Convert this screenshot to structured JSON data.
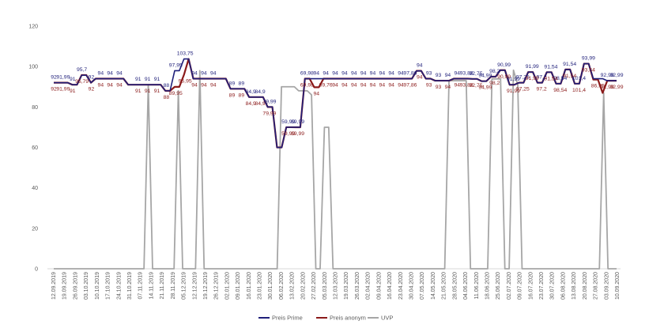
{
  "chart_data": {
    "type": "line",
    "title": "",
    "xlabel": "",
    "ylabel": "",
    "ylim": [
      0,
      120
    ],
    "yticks": [
      0,
      20,
      40,
      60,
      80,
      100,
      120
    ],
    "grid": false,
    "legend_position": "bottom",
    "x_tick_labels": [
      "12.09.2019",
      "19.09.2019",
      "26.09.2019",
      "03.10.2019",
      "10.10.2019",
      "17.10.2019",
      "24.10.2019",
      "31.10.2019",
      "07.11.2019",
      "14.11.2019",
      "21.11.2019",
      "28.11.2019",
      "05.12.2019",
      "12.12.2019",
      "19.12.2019",
      "26.12.2019",
      "02.01.2020",
      "09.01.2020",
      "16.01.2020",
      "23.01.2020",
      "30.01.2020",
      "06.02.2020",
      "13.02.2020",
      "20.02.2020",
      "27.02.2020",
      "05.03.2020",
      "12.03.2020",
      "19.03.2020",
      "26.03.2020",
      "02.04.2020",
      "09.04.2020",
      "16.04.2020",
      "23.04.2020",
      "30.04.2020",
      "07.05.2020",
      "14.05.2020",
      "21.05.2020",
      "28.05.2020",
      "04.06.2020",
      "11.06.2020",
      "18.06.2020",
      "25.06.2020",
      "02.07.2020",
      "09.07.2020",
      "16.07.2020",
      "23.07.2020",
      "30.07.2020",
      "06.08.2020",
      "13.08.2020",
      "20.08.2020",
      "27.08.2020",
      "03.09.2020",
      "10.09.2020"
    ],
    "series": [
      {
        "name": "Preis Prime",
        "color": "#1f1f7a",
        "labels": [
          "92",
          "91,99",
          "91",
          "95,7",
          "92",
          "94",
          "94",
          "94",
          "",
          "91",
          "91",
          "91",
          "88",
          "97,95",
          "103,75",
          "94",
          "94",
          "94",
          "",
          "89",
          "89",
          "84,9",
          "84,9",
          "79,99",
          "",
          "59,99",
          "69,99",
          "69,98",
          "94",
          "94",
          "94",
          "94",
          "94",
          "94",
          "94",
          "94",
          "94",
          "94",
          "97,86",
          "94",
          "93",
          "93",
          "94",
          "94",
          "93,88",
          "92,75",
          "94,99",
          "98,2",
          "90,99",
          "91,99",
          "97,25",
          "91,99",
          "97,2",
          "91,54",
          "98,54",
          "91,54",
          "101,4",
          "93,99",
          "",
          "92,99",
          "92,99"
        ],
        "values": [
          92,
          92,
          91.99,
          91.99,
          91,
          91,
          95.7,
          95.7,
          92,
          94,
          94,
          94,
          94,
          94,
          94,
          94,
          91,
          91,
          91,
          91,
          91,
          91,
          91,
          91,
          88,
          88,
          97.95,
          97.95,
          103.75,
          103.75,
          94,
          94,
          94,
          94,
          94,
          94,
          94,
          94,
          89,
          89,
          89,
          89,
          84.9,
          84.9,
          84.9,
          84.9,
          79.99,
          79.99,
          59.99,
          59.99,
          69.99,
          69.99,
          69.98,
          69.98,
          94,
          94,
          94,
          94,
          94,
          94,
          94,
          94,
          94,
          94,
          94,
          94,
          94,
          94,
          94,
          94,
          94,
          94,
          94,
          94,
          94,
          94,
          94,
          94,
          97.86,
          97.86,
          94,
          94,
          93,
          93,
          93,
          93,
          94,
          94,
          94,
          94,
          93.88,
          93.88,
          92.75,
          92.75,
          94.99,
          94.99,
          98.2,
          98.2,
          90.99,
          90.99,
          91.99,
          91.99,
          97.25,
          97.25,
          91.99,
          91.99,
          97.2,
          97.2,
          91.54,
          91.54,
          98.54,
          98.54,
          91.54,
          91.54,
          101.4,
          101.4,
          93.99,
          93.99,
          93.99,
          92.99,
          92.99,
          92.99
        ]
      },
      {
        "name": "Preis anonym",
        "color": "#8b1a1a",
        "labels": [
          "92",
          "91,99",
          "91",
          "95,79",
          "92",
          "94",
          "94",
          "94",
          "",
          "91",
          "91",
          "91",
          "88",
          "89,95",
          "95,95",
          "94",
          "94",
          "94",
          "",
          "89",
          "89",
          "84,9",
          "84,9",
          "79,99",
          "",
          "59,99",
          "69,99",
          "69,98",
          "94",
          "89,76",
          "94",
          "94",
          "94",
          "94",
          "94",
          "94",
          "94",
          "94",
          "97,86",
          "94",
          "93",
          "93",
          "94",
          "94",
          "93,88",
          "92,75",
          "94,99",
          "98,2",
          "90,99",
          "91,99",
          "97,25",
          "91,99",
          "97,2",
          "91,54",
          "98,54",
          "91,54",
          "101,4",
          "93,54",
          "86,95",
          "92,99",
          "92,99"
        ],
        "values": [
          92,
          92,
          91.99,
          91.99,
          91,
          91,
          95.79,
          95.79,
          92,
          94,
          94,
          94,
          94,
          94,
          94,
          94,
          91,
          91,
          91,
          91,
          91,
          91,
          91,
          91,
          88,
          88,
          89.95,
          89.95,
          95.95,
          103.75,
          94,
          94,
          94,
          94,
          94,
          94,
          94,
          94,
          89,
          89,
          89,
          89,
          84.9,
          84.9,
          84.9,
          84.9,
          79.99,
          79.99,
          59.99,
          59.99,
          69.99,
          69.99,
          69.98,
          69.98,
          94,
          94,
          89.76,
          89.76,
          94,
          94,
          94,
          94,
          94,
          94,
          94,
          94,
          94,
          94,
          94,
          94,
          94,
          94,
          94,
          94,
          94,
          94,
          94,
          94,
          97.86,
          97.86,
          94,
          94,
          93,
          93,
          93,
          93,
          94,
          94,
          94,
          94,
          93.88,
          93.88,
          92.75,
          92.75,
          94.99,
          94.99,
          98.2,
          98.2,
          90.99,
          90.99,
          91.99,
          91.99,
          97.25,
          97.25,
          91.99,
          91.99,
          97.2,
          97.2,
          91.54,
          91.54,
          98.54,
          98.54,
          91.54,
          91.54,
          101.4,
          101.4,
          93.54,
          93.54,
          86.95,
          92.99,
          92.99,
          92.99
        ]
      },
      {
        "name": "UVP",
        "color": "#a6a6a6",
        "labels": [],
        "values": [
          0,
          0,
          0,
          0,
          0,
          0,
          0,
          0,
          0,
          0,
          0,
          0,
          0,
          0,
          0,
          0,
          0,
          0,
          0,
          0,
          0,
          0,
          91,
          0,
          0,
          0,
          0,
          0,
          0,
          88,
          0,
          0,
          0,
          0,
          97.95,
          0,
          0,
          0,
          0,
          0,
          0,
          0,
          0,
          0,
          0,
          0,
          0,
          0,
          0,
          0,
          0,
          0,
          0,
          90,
          90,
          90,
          90,
          88,
          88,
          88,
          86,
          0,
          0,
          69.98,
          69.98,
          0,
          0,
          0,
          0,
          0,
          0,
          0,
          0,
          0,
          0,
          0,
          0,
          0,
          0,
          0,
          0,
          0,
          0,
          0,
          0,
          0,
          0,
          0,
          0,
          0,
          0,
          0,
          93,
          93,
          93,
          93,
          93,
          0,
          0,
          0,
          0,
          0,
          93.88,
          93.88,
          93.88,
          0,
          0,
          98.2,
          90.99,
          0,
          0,
          0,
          0,
          0,
          0,
          0,
          0,
          0,
          0,
          0,
          0,
          0,
          0,
          0,
          0,
          0,
          0,
          0,
          86.95,
          0,
          0,
          0
        ]
      }
    ]
  }
}
